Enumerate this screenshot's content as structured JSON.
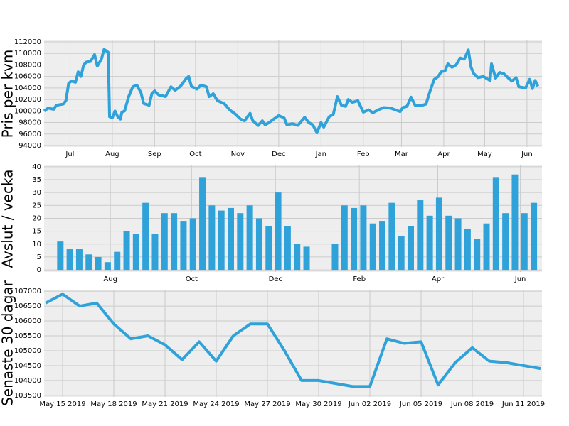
{
  "chart_data": [
    {
      "type": "line",
      "y_label": "Pris per kvm",
      "color": "#30a2da",
      "grid": true,
      "x": [
        0,
        3,
        7,
        9,
        14,
        16,
        18,
        20,
        23,
        25,
        27,
        29,
        31,
        34,
        37,
        39,
        42,
        44,
        47,
        48,
        50,
        52,
        54,
        56,
        57,
        59,
        62,
        65,
        68,
        71,
        73,
        77,
        79,
        81,
        84,
        89,
        93,
        96,
        100,
        104,
        106,
        108,
        112,
        115,
        119,
        121,
        124,
        127,
        132,
        136,
        140,
        144,
        147,
        151,
        153,
        157,
        160,
        162,
        165,
        169,
        172,
        176,
        178,
        182,
        186,
        191,
        194,
        197,
        200,
        203,
        205,
        209,
        212,
        215,
        218,
        221,
        223,
        226,
        230,
        234,
        238,
        241,
        245,
        249,
        254,
        261,
        263,
        266,
        269,
        272,
        276,
        280,
        283,
        286,
        289,
        291,
        294,
        296,
        299,
        302,
        305,
        308,
        311,
        313,
        315,
        318,
        322,
        327,
        328,
        331,
        334,
        337,
        340,
        343,
        346,
        348,
        353,
        356,
        358,
        360,
        362
      ],
      "values": [
        100000,
        100500,
        100300,
        101000,
        101200,
        101800,
        104800,
        105200,
        105000,
        106800,
        106000,
        108000,
        108500,
        108600,
        109800,
        107800,
        109000,
        110700,
        110200,
        99000,
        98800,
        100000,
        99000,
        98600,
        99800,
        100000,
        102500,
        104200,
        104500,
        103200,
        101300,
        101000,
        103000,
        103500,
        102800,
        102500,
        104200,
        103600,
        104300,
        105600,
        106000,
        104300,
        103800,
        104500,
        104200,
        102500,
        103000,
        101800,
        101300,
        100200,
        99500,
        98600,
        98300,
        99600,
        98300,
        97500,
        98300,
        97600,
        98000,
        98700,
        99200,
        98800,
        97600,
        97800,
        97500,
        98900,
        98000,
        97600,
        96200,
        98000,
        97200,
        99000,
        99400,
        102500,
        101000,
        100800,
        102000,
        101500,
        101800,
        99800,
        100200,
        99700,
        100200,
        100600,
        100500,
        99900,
        100600,
        100800,
        102400,
        101000,
        100900,
        101200,
        103500,
        105500,
        106000,
        106800,
        107000,
        108200,
        107600,
        108000,
        109200,
        109000,
        110600,
        107600,
        106500,
        105800,
        106000,
        105300,
        108200,
        105700,
        106700,
        106500,
        105800,
        105200,
        105800,
        104200,
        104000,
        105500,
        103900,
        105300,
        104300
      ],
      "xlim": [
        0,
        365
      ],
      "ylim": [
        93750,
        112250
      ],
      "xticks": [
        {
          "value": 19,
          "label": "Jul"
        },
        {
          "value": 50,
          "label": "Aug"
        },
        {
          "value": 81,
          "label": "Sep"
        },
        {
          "value": 111,
          "label": "Oct"
        },
        {
          "value": 142,
          "label": "Nov"
        },
        {
          "value": 172,
          "label": "Dec"
        },
        {
          "value": 203,
          "label": "Jan"
        },
        {
          "value": 234,
          "label": "Feb"
        },
        {
          "value": 262,
          "label": "Mar"
        },
        {
          "value": 293,
          "label": "Apr"
        },
        {
          "value": 323,
          "label": "May"
        },
        {
          "value": 354,
          "label": "Jun"
        }
      ],
      "yticks": [
        94000,
        96000,
        98000,
        100000,
        102000,
        104000,
        106000,
        108000,
        110000,
        112000
      ]
    },
    {
      "type": "bar",
      "y_label": "Avslut / vecka",
      "color": "#30a2da",
      "grid": true,
      "x": [
        12,
        19,
        26,
        33,
        40,
        47,
        54,
        61,
        68,
        75,
        82,
        89,
        96,
        103,
        110,
        117,
        124,
        131,
        138,
        145,
        152,
        159,
        166,
        173,
        180,
        187,
        194,
        201,
        208,
        215,
        222,
        229,
        236,
        243,
        250,
        257,
        264,
        271,
        278,
        285,
        292,
        299,
        306,
        313,
        320,
        327,
        334,
        341,
        348,
        355,
        362
      ],
      "values": [
        11,
        8,
        8,
        6,
        5,
        3,
        7,
        15,
        14,
        26,
        14,
        22,
        22,
        19,
        20,
        36,
        25,
        23,
        24,
        22,
        25,
        20,
        17,
        30,
        17,
        10,
        9,
        null,
        null,
        10,
        25,
        24,
        25,
        18,
        19,
        26,
        13,
        17,
        27,
        21,
        28,
        21,
        20,
        16,
        12,
        18,
        36,
        22,
        37,
        22,
        26
      ],
      "xlim": [
        0,
        368
      ],
      "ylim": [
        -0.8,
        40.5
      ],
      "xticks": [
        {
          "value": 49,
          "label": "Aug"
        },
        {
          "value": 109,
          "label": "Oct"
        },
        {
          "value": 171,
          "label": "Dec"
        },
        {
          "value": 233,
          "label": "Feb"
        },
        {
          "value": 291,
          "label": "Apr"
        },
        {
          "value": 352,
          "label": "Jun"
        }
      ],
      "yticks": [
        0,
        5,
        10,
        15,
        20,
        25,
        30,
        35,
        40
      ]
    },
    {
      "type": "line",
      "y_label": "Senaste 30 dagar",
      "color": "#30a2da",
      "grid": true,
      "x": [
        "2019-05-14",
        "2019-05-15",
        "2019-05-16",
        "2019-05-17",
        "2019-05-18",
        "2019-05-19",
        "2019-05-20",
        "2019-05-21",
        "2019-05-22",
        "2019-05-23",
        "2019-05-24",
        "2019-05-25",
        "2019-05-26",
        "2019-05-27",
        "2019-05-28",
        "2019-05-29",
        "2019-05-30",
        "2019-05-31",
        "2019-06-01",
        "2019-06-02",
        "2019-06-03",
        "2019-06-04",
        "2019-06-05",
        "2019-06-06",
        "2019-06-07",
        "2019-06-08",
        "2019-06-09",
        "2019-06-10",
        "2019-06-11",
        "2019-06-12"
      ],
      "values": [
        106600,
        106900,
        106500,
        106600,
        105900,
        105400,
        105500,
        105200,
        104700,
        105300,
        104650,
        105500,
        105900,
        105900,
        105000,
        104000,
        104000,
        103900,
        103800,
        103800,
        105400,
        105250,
        105300,
        103850,
        104600,
        105100,
        104650,
        104600,
        104500,
        104400
      ],
      "xlim": [
        "2019-05-14",
        "2019-06-12"
      ],
      "ylim": [
        103450,
        107050
      ],
      "xticks": [
        {
          "value": "2019-05-15",
          "label": "May 15 2019"
        },
        {
          "value": "2019-05-18",
          "label": "May 18 2019"
        },
        {
          "value": "2019-05-21",
          "label": "May 21 2019"
        },
        {
          "value": "2019-05-24",
          "label": "May 24 2019"
        },
        {
          "value": "2019-05-27",
          "label": "May 27 2019"
        },
        {
          "value": "2019-05-30",
          "label": "May 30 2019"
        },
        {
          "value": "2019-06-02",
          "label": "Jun 02 2019"
        },
        {
          "value": "2019-06-05",
          "label": "Jun 05 2019"
        },
        {
          "value": "2019-06-08",
          "label": "Jun 08 2019"
        },
        {
          "value": "2019-06-11",
          "label": "Jun 11 2019"
        }
      ],
      "yticks": [
        103500,
        104000,
        104500,
        105000,
        105500,
        106000,
        106500,
        107000
      ]
    }
  ]
}
